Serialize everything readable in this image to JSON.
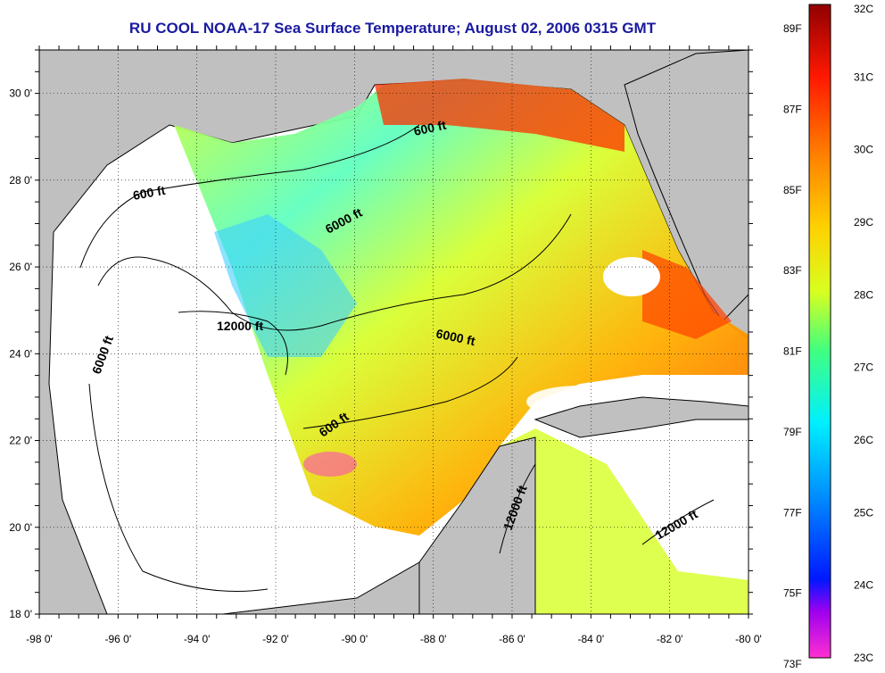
{
  "title": "RU COOL  NOAA-17  Sea Surface Temperature;  August 02, 2006 0315 GMT",
  "map": {
    "lon_ticks": [
      "-98 0'",
      "-96 0'",
      "-94 0'",
      "-92 0'",
      "-90 0'",
      "-88 0'",
      "-86 0'",
      "-84 0'",
      "-82 0'",
      "-80 0'"
    ],
    "lat_ticks": [
      "30 0'",
      "28 0'",
      "26 0'",
      "24 0'",
      "22 0'",
      "20 0'",
      "18 0'"
    ],
    "lon_range": [
      -98,
      -80
    ],
    "lat_range": [
      18,
      31
    ],
    "grid": "dotted",
    "contour_labels": [
      "600 ft",
      "600 ft",
      "6000 ft",
      "6000 ft",
      "6000 ft",
      "12000 ft",
      "600 ft",
      "12000 ft",
      "12000 ft"
    ],
    "colors": {
      "land": "#c0c0c0",
      "no_data": "#ffffff",
      "coast": "#000000"
    }
  },
  "colorbar": {
    "fahrenheit_labels": [
      "89F",
      "87F",
      "85F",
      "83F",
      "81F",
      "79F",
      "77F",
      "75F",
      "73F"
    ],
    "celsius_labels": [
      "32C",
      "31C",
      "30C",
      "29C",
      "28C",
      "27C",
      "26C",
      "25C",
      "24C",
      "23C"
    ],
    "range_c": [
      23,
      32
    ],
    "colors": [
      "#ff30d0",
      "#8000ff",
      "#0018ff",
      "#0090ff",
      "#00f0ff",
      "#40ff80",
      "#d8ff20",
      "#ffd000",
      "#ff8000",
      "#ff1800",
      "#900000"
    ]
  }
}
